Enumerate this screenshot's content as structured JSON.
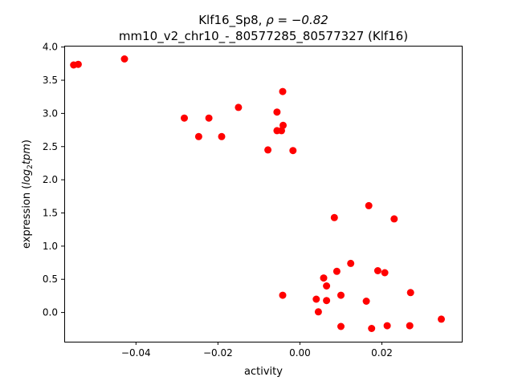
{
  "chart_data": {
    "type": "scatter",
    "title_line1_prefix": "Klf16_Sp8, ",
    "title_line1_math": "ρ = −0.82",
    "title_line2": "mm10_v2_chr10_-_80577285_80577327 (Klf16)",
    "xlabel": "activity",
    "ylabel_prefix": "expression (",
    "ylabel_math_log": "log",
    "ylabel_math_sub": "2",
    "ylabel_math_tpm": "tpm",
    "ylabel_suffix": ")",
    "xlim": [
      -0.0575,
      0.0395
    ],
    "ylim": [
      -0.44,
      4.02
    ],
    "xticks": [
      -0.04,
      -0.02,
      0.0,
      0.02
    ],
    "xtick_labels": [
      "−0.04",
      "−0.02",
      "0.00",
      "0.02"
    ],
    "yticks": [
      0.0,
      0.5,
      1.0,
      1.5,
      2.0,
      2.5,
      3.0,
      3.5,
      4.0
    ],
    "ytick_labels": [
      "0.0",
      "0.5",
      "1.0",
      "1.5",
      "2.0",
      "2.5",
      "3.0",
      "3.5",
      "4.0"
    ],
    "marker_color": "#ff0000",
    "points": [
      {
        "x": -0.0552,
        "y": 3.73
      },
      {
        "x": -0.0541,
        "y": 3.74
      },
      {
        "x": -0.0428,
        "y": 3.82
      },
      {
        "x": -0.0282,
        "y": 2.93
      },
      {
        "x": -0.0222,
        "y": 2.93
      },
      {
        "x": -0.0247,
        "y": 2.65
      },
      {
        "x": -0.0191,
        "y": 2.65
      },
      {
        "x": -0.015,
        "y": 3.09
      },
      {
        "x": -0.0042,
        "y": 3.33
      },
      {
        "x": -0.0056,
        "y": 3.02
      },
      {
        "x": -0.0041,
        "y": 2.82
      },
      {
        "x": -0.0056,
        "y": 2.74
      },
      {
        "x": -0.0045,
        "y": 2.74
      },
      {
        "x": -0.0078,
        "y": 2.45
      },
      {
        "x": -0.0017,
        "y": 2.44
      },
      {
        "x": 0.0084,
        "y": 1.43
      },
      {
        "x": 0.0168,
        "y": 1.61
      },
      {
        "x": 0.023,
        "y": 1.41
      },
      {
        "x": 0.0124,
        "y": 0.74
      },
      {
        "x": 0.009,
        "y": 0.62
      },
      {
        "x": 0.019,
        "y": 0.63
      },
      {
        "x": 0.0207,
        "y": 0.6
      },
      {
        "x": 0.0058,
        "y": 0.52
      },
      {
        "x": 0.0065,
        "y": 0.4
      },
      {
        "x": 0.027,
        "y": 0.3
      },
      {
        "x": -0.0042,
        "y": 0.26
      },
      {
        "x": 0.01,
        "y": 0.26
      },
      {
        "x": 0.004,
        "y": 0.2
      },
      {
        "x": 0.0065,
        "y": 0.18
      },
      {
        "x": 0.0162,
        "y": 0.17
      },
      {
        "x": 0.0045,
        "y": 0.01
      },
      {
        "x": 0.0345,
        "y": -0.1
      },
      {
        "x": 0.01,
        "y": -0.21
      },
      {
        "x": 0.0213,
        "y": -0.2
      },
      {
        "x": 0.0268,
        "y": -0.2
      },
      {
        "x": 0.0175,
        "y": -0.24
      }
    ]
  }
}
